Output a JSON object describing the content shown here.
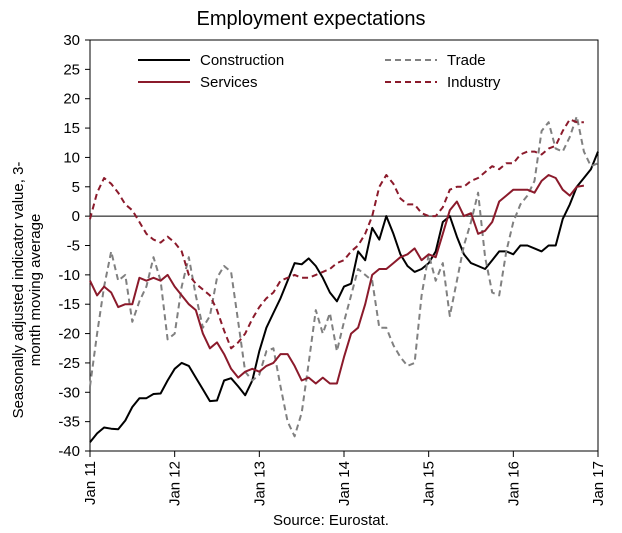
{
  "chart_data": {
    "type": "line",
    "title": "Employment expectations",
    "ylabel": "Seasonally adjusted indicator value, 3-month moving average",
    "xlabel": "",
    "source": "Source: Eurostat.",
    "ylim": [
      -40,
      30
    ],
    "yticks": [
      30,
      25,
      20,
      15,
      10,
      5,
      0,
      -5,
      -10,
      -15,
      -20,
      -25,
      -30,
      -35,
      -40
    ],
    "x_start": "Jan 11",
    "x_ticks": [
      "Jan 11",
      "Jan 12",
      "Jan 13",
      "Jan 14",
      "Jan 15",
      "Jan 16",
      "Jan 17"
    ],
    "grid": false,
    "legend_position": "top",
    "series": [
      {
        "name": "Construction",
        "color": "#000000",
        "dash": "solid",
        "values": [
          -38.5,
          -37,
          -36,
          -36.2,
          -36.3,
          -34.8,
          -32.5,
          -31,
          -31,
          -30.3,
          -30.2,
          -28,
          -26,
          -25,
          -25.5,
          -27.5,
          -29.5,
          -31.5,
          -31.4,
          -28,
          -27.6,
          -29,
          -30.5,
          -28,
          -23,
          -19,
          -16.5,
          -14,
          -11,
          -8,
          -8.2,
          -7.2,
          -8.5,
          -10.5,
          -13,
          -14.5,
          -12,
          -11.5,
          -6,
          -7.5,
          -2,
          -4,
          0,
          -3,
          -6.5,
          -8.5,
          -9.5,
          -9,
          -8,
          -6,
          -1,
          0,
          -3.5,
          -6.5,
          -8,
          -8.5,
          -9,
          -7.5,
          -6,
          -6,
          -6.5,
          -5,
          -5,
          -5.5,
          -6,
          -5,
          -5,
          -0.5,
          2,
          5,
          6.5,
          8,
          11
        ]
      },
      {
        "name": "Trade",
        "color": "#808080",
        "dash": "dashed",
        "values": [
          -29,
          -20,
          -12,
          -6,
          -11,
          -10,
          -18,
          -14.5,
          -12,
          -7,
          -11,
          -21,
          -20,
          -12,
          -7,
          -13.5,
          -19,
          -17,
          -10.5,
          -8.5,
          -9.5,
          -18,
          -26.5,
          -28,
          -27,
          -23,
          -22.5,
          -29,
          -35,
          -37.5,
          -33.5,
          -25,
          -16,
          -20,
          -16.5,
          -23,
          -18,
          -13.5,
          -9,
          -10,
          -11,
          -19,
          -19,
          -22,
          -24,
          -25.5,
          -25,
          -13.5,
          -6.5,
          -11,
          -8,
          -17,
          -11,
          -5,
          -1,
          4,
          -7,
          -13,
          -13.5,
          -6,
          -1,
          2,
          3.5,
          6,
          14.5,
          16,
          11.5,
          11,
          13.5,
          17,
          11,
          8.5,
          9
        ]
      },
      {
        "name": "Services",
        "color": "#8b1a2b",
        "dash": "solid",
        "values": [
          -11,
          -13.5,
          -12,
          -13,
          -15.5,
          -15,
          -15,
          -10.5,
          -11,
          -10.5,
          -11,
          -10,
          -12,
          -13.5,
          -15,
          -16,
          -20,
          -22.5,
          -21.5,
          -23.5,
          -26,
          -27.5,
          -26.5,
          -26,
          -26.5,
          -25.5,
          -25,
          -23.5,
          -23.5,
          -25.5,
          -28,
          -27.5,
          -28.5,
          -27.5,
          -28.5,
          -28.5,
          -24,
          -20,
          -19,
          -15,
          -10,
          -9,
          -9,
          -8,
          -7,
          -6.5,
          -5.5,
          -7.5,
          -6.5,
          -7,
          -3,
          1,
          2.5,
          0,
          0.5,
          -3,
          -2.5,
          -1,
          2.5,
          3.5,
          4.5,
          4.5,
          4.5,
          4,
          6,
          7,
          6.5,
          4.5,
          3.5,
          5,
          5.2
        ]
      },
      {
        "name": "Industry",
        "color": "#8b1a2b",
        "dash": "dashed",
        "values": [
          -0.5,
          4,
          6.5,
          5.5,
          4,
          2,
          1,
          -1,
          -3,
          -4,
          -4.5,
          -3.5,
          -4.5,
          -6,
          -10,
          -11.5,
          -12.5,
          -13.5,
          -16,
          -19.5,
          -22.5,
          -21.5,
          -20,
          -17.5,
          -15.5,
          -14,
          -13,
          -11,
          -10.5,
          -10,
          -10.5,
          -10.5,
          -10,
          -9.5,
          -9,
          -8,
          -7.5,
          -6,
          -5,
          -3,
          0,
          5,
          7,
          5.5,
          3,
          2,
          2,
          0.5,
          0,
          0,
          1.5,
          4.5,
          5,
          5,
          6,
          6.5,
          7.5,
          8.5,
          8,
          9,
          9,
          10.5,
          11,
          11,
          10.5,
          11.5,
          12,
          14.5,
          16.5,
          16,
          16
        ]
      }
    ]
  }
}
